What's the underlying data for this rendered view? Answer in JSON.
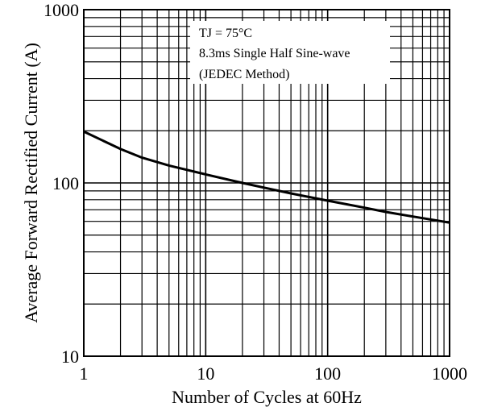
{
  "chart_data": {
    "type": "line",
    "title": "",
    "xlabel": "Number of Cycles at 60Hz",
    "ylabel": "Average Forward Rectified Current (A)",
    "x_scale": "log",
    "y_scale": "log",
    "xlim": [
      1,
      1000
    ],
    "ylim": [
      10,
      1000
    ],
    "x_ticks": [
      "1",
      "10",
      "100",
      "1000"
    ],
    "y_ticks": [
      "10",
      "100",
      "1000"
    ],
    "grid": true,
    "annotations": [
      "TJ = 75°C",
      "8.3ms Single Half Sine-wave",
      "(JEDEC Method)"
    ],
    "series": [
      {
        "x": [
          1,
          2,
          3,
          5,
          10,
          20,
          30,
          50,
          100,
          200,
          300,
          500,
          1000
        ],
        "y": [
          198,
          157,
          140,
          126,
          112,
          100,
          94,
          87,
          79,
          72,
          68,
          64,
          59
        ]
      }
    ]
  }
}
